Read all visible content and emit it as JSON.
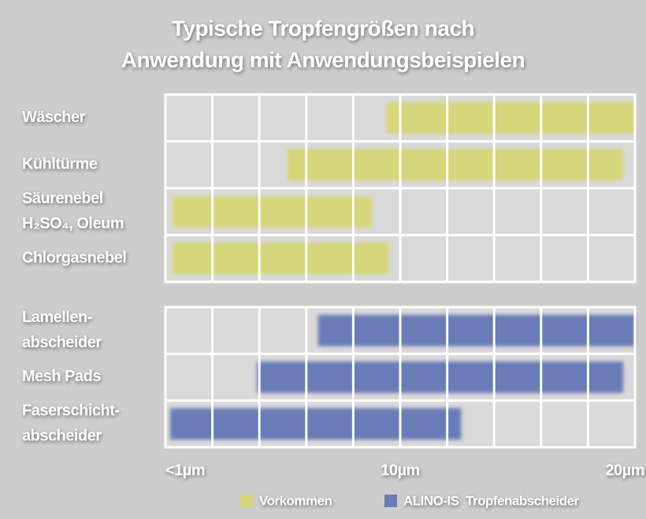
{
  "chart_data": {
    "type": "range_bar",
    "title": [
      "Typische Tropfengrößen nach",
      "Anwendung mit Anwendungsbeispielen"
    ],
    "xlim": [
      0,
      20
    ],
    "xticks": [
      {
        "value": 0,
        "label": "<1µm"
      },
      {
        "value": 10,
        "label": "10µm"
      },
      {
        "value": 20,
        "label": "20µm"
      }
    ],
    "xgrid": [
      0,
      2,
      4,
      6,
      8,
      10,
      12,
      14,
      16,
      18,
      20
    ],
    "legend": "bottom-right",
    "series": [
      {
        "name": "Vorkommen",
        "color": "#d6d67a",
        "categories": [
          [
            "Wäscher"
          ],
          [
            "Kühltürme"
          ],
          [
            "Säurenebel",
            "H₂SO₄, Oleum"
          ],
          [
            "Chlorgasnebel"
          ]
        ],
        "start": [
          9.4,
          5.2,
          0.3,
          0.3
        ],
        "end": [
          20,
          19.5,
          8.8,
          9.5
        ]
      },
      {
        "name": "ALINO-IS  Tropfenabscheider",
        "color": "#6b7bb8",
        "categories": [
          [
            "Lamellen-",
            "abscheider"
          ],
          [
            "Mesh Pads"
          ],
          [
            "Faserschicht-",
            "abscheider"
          ]
        ],
        "start": [
          6.5,
          3.9,
          0.2
        ],
        "end": [
          20,
          19.5,
          12.6
        ]
      }
    ]
  }
}
